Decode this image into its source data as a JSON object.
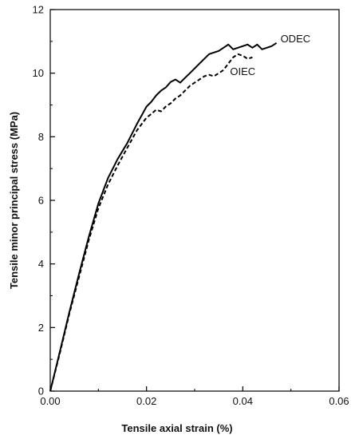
{
  "chart_data": {
    "type": "line",
    "xlabel": "Tensile axial strain (%)",
    "ylabel": "Tensile minor principal stress (MPa)",
    "xlim": [
      0,
      0.06
    ],
    "ylim": [
      0,
      12
    ],
    "x_ticks": [
      "0.00",
      "0.02",
      "0.04",
      "0.06"
    ],
    "y_ticks": [
      "0",
      "2",
      "4",
      "6",
      "8",
      "10",
      "12"
    ],
    "grid": false,
    "legend": "none (series labelled directly at line ends)",
    "series": [
      {
        "name": "ODEC",
        "line_style": "solid",
        "color": "#000000",
        "x": [
          0.0,
          0.002,
          0.004,
          0.006,
          0.008,
          0.01,
          0.012,
          0.014,
          0.016,
          0.018,
          0.02,
          0.021,
          0.022,
          0.023,
          0.024,
          0.025,
          0.026,
          0.027,
          0.028,
          0.029,
          0.03,
          0.031,
          0.032,
          0.033,
          0.034,
          0.035,
          0.036,
          0.037,
          0.038,
          0.039,
          0.04,
          0.041,
          0.042,
          0.043,
          0.044,
          0.045,
          0.046,
          0.047
        ],
        "values": [
          0.0,
          1.25,
          2.5,
          3.7,
          4.85,
          5.9,
          6.7,
          7.3,
          7.8,
          8.4,
          8.95,
          9.1,
          9.3,
          9.45,
          9.55,
          9.72,
          9.8,
          9.7,
          9.85,
          10.0,
          10.15,
          10.3,
          10.45,
          10.6,
          10.65,
          10.7,
          10.8,
          10.9,
          10.75,
          10.8,
          10.85,
          10.9,
          10.8,
          10.9,
          10.75,
          10.8,
          10.85,
          10.95
        ]
      },
      {
        "name": "OIEC",
        "line_style": "dashed",
        "color": "#000000",
        "x": [
          0.0,
          0.002,
          0.004,
          0.006,
          0.008,
          0.01,
          0.012,
          0.014,
          0.016,
          0.018,
          0.02,
          0.021,
          0.022,
          0.023,
          0.024,
          0.025,
          0.026,
          0.027,
          0.028,
          0.029,
          0.03,
          0.031,
          0.032,
          0.033,
          0.034,
          0.035,
          0.036,
          0.037,
          0.038,
          0.039,
          0.04,
          0.041,
          0.042
        ],
        "values": [
          0.0,
          1.2,
          2.45,
          3.6,
          4.75,
          5.75,
          6.5,
          7.1,
          7.65,
          8.2,
          8.6,
          8.72,
          8.85,
          8.8,
          8.95,
          9.05,
          9.2,
          9.3,
          9.45,
          9.6,
          9.7,
          9.8,
          9.9,
          9.95,
          9.9,
          10.0,
          10.1,
          10.3,
          10.5,
          10.6,
          10.55,
          10.45,
          10.5
        ]
      }
    ]
  }
}
